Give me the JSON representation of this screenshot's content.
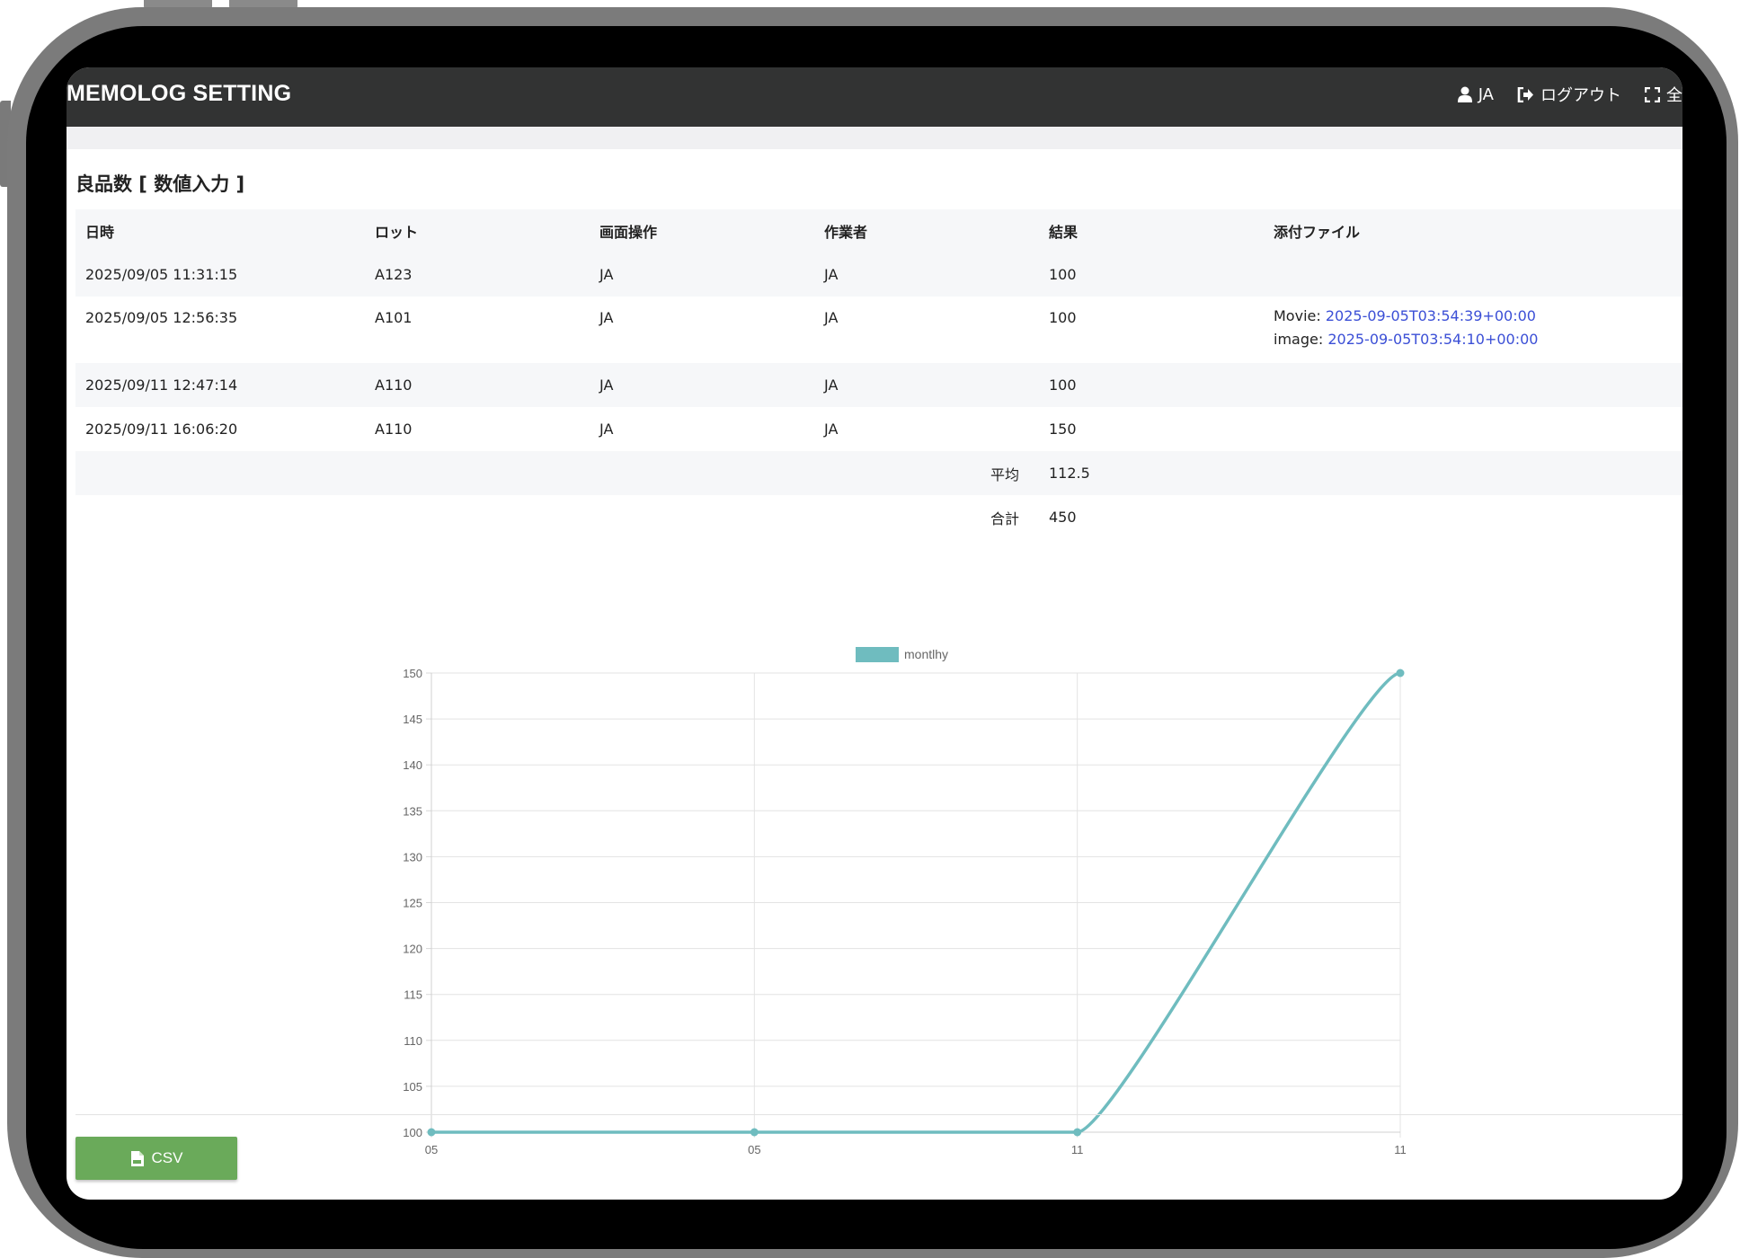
{
  "header": {
    "brand": "MEMOLOG SETTING",
    "user_label": "JA",
    "logout_label": "ログアウト",
    "fullscreen_label": "全"
  },
  "page": {
    "title": "良品数 [ 数値入力 ]"
  },
  "table": {
    "columns": [
      "日時",
      "ロット",
      "画面操作",
      "作業者",
      "結果",
      "添付ファイル"
    ],
    "rows": [
      {
        "datetime": "2025/09/05 11:31:15",
        "lot": "A123",
        "operation": "JA",
        "worker": "JA",
        "result": "100"
      },
      {
        "datetime": "2025/09/05 12:56:35",
        "lot": "A101",
        "operation": "JA",
        "worker": "JA",
        "result": "100",
        "attachments": [
          {
            "prefix": "Movie:",
            "link": "2025-09-05T03:54:39+00:00"
          },
          {
            "prefix": "image:",
            "link": "2025-09-05T03:54:10+00:00"
          }
        ]
      },
      {
        "datetime": "2025/09/11 12:47:14",
        "lot": "A110",
        "operation": "JA",
        "worker": "JA",
        "result": "100"
      },
      {
        "datetime": "2025/09/11 16:06:20",
        "lot": "A110",
        "operation": "JA",
        "worker": "JA",
        "result": "150"
      }
    ],
    "summary": [
      {
        "label": "平均",
        "value": "112.5"
      },
      {
        "label": "合計",
        "value": "450"
      }
    ]
  },
  "chart_data": {
    "type": "line",
    "categories": [
      "05",
      "05",
      "11",
      "11"
    ],
    "series": [
      {
        "name": "montlhy",
        "values": [
          100,
          100,
          100,
          150
        ],
        "color": "#6fbcbf"
      }
    ],
    "ylim": [
      100,
      150
    ],
    "yticks": [
      100,
      105,
      110,
      115,
      120,
      125,
      130,
      135,
      140,
      145,
      150
    ],
    "grid": true,
    "legend": "top-center"
  },
  "footer": {
    "csv_label": "CSV"
  }
}
